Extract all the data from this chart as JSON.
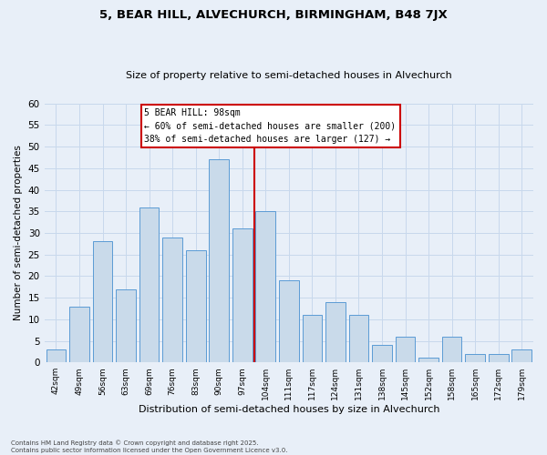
{
  "title1": "5, BEAR HILL, ALVECHURCH, BIRMINGHAM, B48 7JX",
  "title2": "Size of property relative to semi-detached houses in Alvechurch",
  "xlabel": "Distribution of semi-detached houses by size in Alvechurch",
  "ylabel": "Number of semi-detached properties",
  "categories": [
    "42sqm",
    "49sqm",
    "56sqm",
    "63sqm",
    "69sqm",
    "76sqm",
    "83sqm",
    "90sqm",
    "97sqm",
    "104sqm",
    "111sqm",
    "117sqm",
    "124sqm",
    "131sqm",
    "138sqm",
    "145sqm",
    "152sqm",
    "158sqm",
    "165sqm",
    "172sqm",
    "179sqm"
  ],
  "values": [
    3,
    13,
    28,
    17,
    36,
    29,
    26,
    47,
    31,
    35,
    19,
    11,
    14,
    11,
    4,
    6,
    1,
    6,
    2,
    2,
    3
  ],
  "bar_color": "#c9daea",
  "bar_edge_color": "#5b9bd5",
  "annotation_title": "5 BEAR HILL: 98sqm",
  "annotation_line1": "← 60% of semi-detached houses are smaller (200)",
  "annotation_line2": "38% of semi-detached houses are larger (127) →",
  "annotation_box_color": "#ffffff",
  "annotation_box_edge": "#cc0000",
  "vline_color": "#cc0000",
  "vline_x": 8.5,
  "ylim": [
    0,
    60
  ],
  "yticks": [
    0,
    5,
    10,
    15,
    20,
    25,
    30,
    35,
    40,
    45,
    50,
    55,
    60
  ],
  "grid_color": "#c8d8ec",
  "bg_color": "#e8eff8",
  "footnote1": "Contains HM Land Registry data © Crown copyright and database right 2025.",
  "footnote2": "Contains public sector information licensed under the Open Government Licence v3.0."
}
